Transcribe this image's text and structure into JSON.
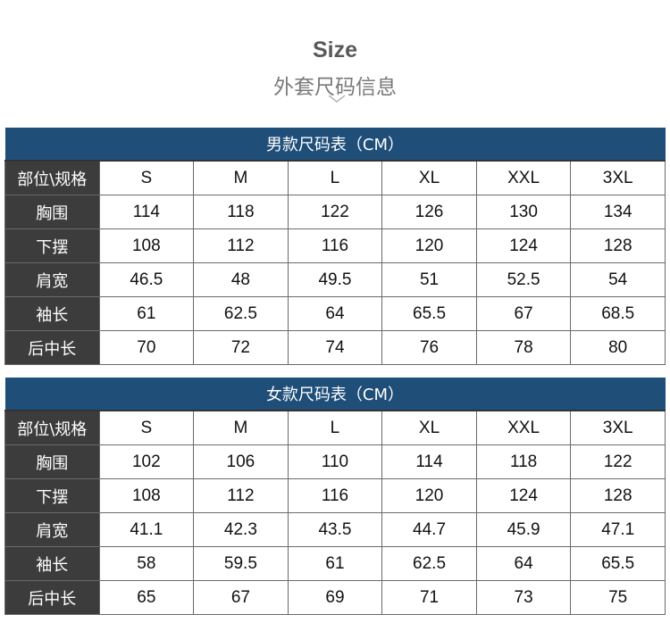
{
  "header": {
    "title": "Size",
    "subtitle": "外套尺码信息",
    "icon": "chevron-down-icon"
  },
  "tables": [
    {
      "caption": "男款尺码表（CM）",
      "corner": "部位\\规格",
      "sizes": [
        "S",
        "M",
        "L",
        "XL",
        "XXL",
        "3XL"
      ],
      "rows": [
        {
          "label": "胸围",
          "values": [
            "114",
            "118",
            "122",
            "126",
            "130",
            "134"
          ]
        },
        {
          "label": "下摆",
          "values": [
            "108",
            "112",
            "116",
            "120",
            "124",
            "128"
          ]
        },
        {
          "label": "肩宽",
          "values": [
            "46.5",
            "48",
            "49.5",
            "51",
            "52.5",
            "54"
          ]
        },
        {
          "label": "袖长",
          "values": [
            "61",
            "62.5",
            "64",
            "65.5",
            "67",
            "68.5"
          ]
        },
        {
          "label": "后中长",
          "values": [
            "70",
            "72",
            "74",
            "76",
            "78",
            "80"
          ]
        }
      ]
    },
    {
      "caption": "女款尺码表（CM）",
      "corner": "部位\\规格",
      "sizes": [
        "S",
        "M",
        "L",
        "XL",
        "XXL",
        "3XL"
      ],
      "rows": [
        {
          "label": "胸围",
          "values": [
            "102",
            "106",
            "110",
            "114",
            "118",
            "122"
          ]
        },
        {
          "label": "下摆",
          "values": [
            "108",
            "112",
            "116",
            "120",
            "124",
            "128"
          ]
        },
        {
          "label": "肩宽",
          "values": [
            "41.1",
            "42.3",
            "43.5",
            "44.7",
            "45.9",
            "47.1"
          ]
        },
        {
          "label": "袖长",
          "values": [
            "58",
            "59.5",
            "61",
            "62.5",
            "64",
            "65.5"
          ]
        },
        {
          "label": "后中长",
          "values": [
            "65",
            "67",
            "69",
            "71",
            "73",
            "75"
          ]
        }
      ]
    }
  ],
  "colors": {
    "caption_bg": "#1f4e79",
    "label_bg": "#3c3c3c"
  }
}
